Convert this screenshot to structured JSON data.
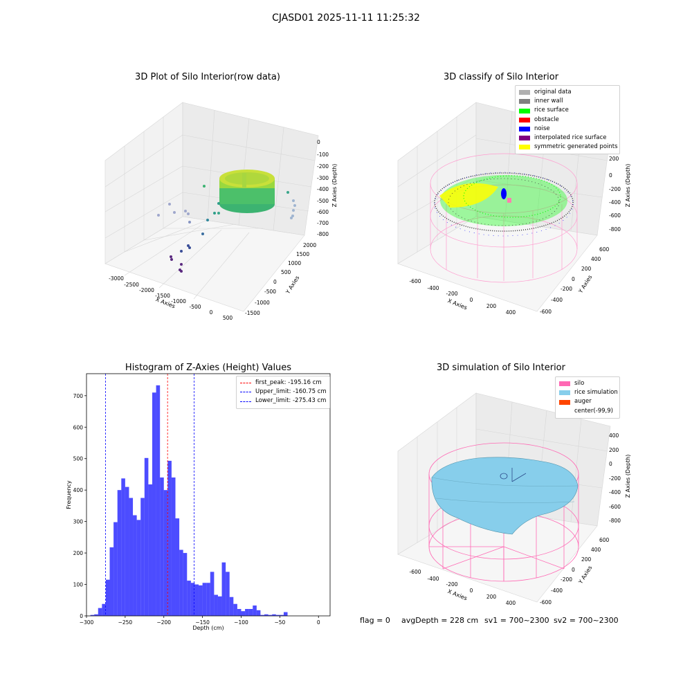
{
  "suptitle": "CJASD01 2025-11-11 11:25:32",
  "colors": {
    "original_data": "#b0b0b0",
    "inner_wall": "#808080",
    "rice_surface": "#00ff00",
    "obstacle": "#ff0000",
    "noise": "#0000ff",
    "interpolated": "#800080",
    "symmetric": "#ffff00",
    "silo": "#ff69b4",
    "rice_sim": "#87ceeb",
    "auger": "#ff4500",
    "hist": "#0000ff"
  },
  "plot1": {
    "title": "3D Plot of Silo Interior(row data)",
    "xlabel": "X Axies",
    "ylabel": "Y Axies",
    "zlabel": "Z Axies (Depth)",
    "xticks": [
      "-3000",
      "-2500",
      "-2000",
      "-1500",
      "-1000",
      "-500",
      "0",
      "500"
    ],
    "yticks": [
      "-1500",
      "-1000",
      "-500",
      "0",
      "500",
      "1000",
      "1500",
      "2000"
    ],
    "zticks": [
      "0",
      "-100",
      "-200",
      "-300",
      "-400",
      "-500",
      "-600",
      "-700",
      "-800"
    ]
  },
  "plot2": {
    "title": "3D classify of Silo Interior",
    "xlabel": "X Axies",
    "ylabel": "Y Axies",
    "zlabel": "Z Axies (Depth)",
    "xticks": [
      "-600",
      "-400",
      "-200",
      "0",
      "200",
      "400"
    ],
    "yticks": [
      "-600",
      "-400",
      "-200",
      "0",
      "200",
      "400",
      "600"
    ],
    "zticks": [
      "200",
      "0",
      "-200",
      "-400",
      "-600",
      "-800"
    ],
    "legend": [
      {
        "label": "original data",
        "color": "#b0b0b0"
      },
      {
        "label": "inner wall",
        "color": "#808080"
      },
      {
        "label": "rice surface",
        "color": "#00ff00"
      },
      {
        "label": "obstacle",
        "color": "#ff0000"
      },
      {
        "label": "noise",
        "color": "#0000ff"
      },
      {
        "label": "interpolated rice surface",
        "color": "#800080"
      },
      {
        "label": "symmetric generated points",
        "color": "#ffff00"
      }
    ]
  },
  "plot4": {
    "title": "3D simulation of Silo Interior",
    "xlabel": "X Axies",
    "ylabel": "Y Axies",
    "zlabel": "Z Axies (Depth)",
    "xticks": [
      "-600",
      "-400",
      "-200",
      "0",
      "200",
      "400"
    ],
    "yticks": [
      "-600",
      "-400",
      "-200",
      "0",
      "200",
      "400",
      "600"
    ],
    "zticks": [
      "400",
      "200",
      "0",
      "-200",
      "-400",
      "-600",
      "-800"
    ],
    "legend": [
      {
        "label": "silo",
        "color": "#ff69b4"
      },
      {
        "label": "rice simulation",
        "color": "#87ceeb"
      },
      {
        "label": "auger",
        "color": "#ff4500"
      },
      {
        "label": "center(-99,9)",
        "color": ""
      }
    ]
  },
  "footer": {
    "flag": "flag = 0",
    "avg": "avgDepth = 228 cm",
    "sv1": "sv1 = 700~2300",
    "sv2": "sv2 = 700~2300"
  },
  "chart_data": [
    {
      "type": "bar",
      "title": "Histogram of Z-Axies (Height) Values",
      "xlabel": "Depth (cm)",
      "ylabel": "Frequency",
      "xlim": [
        -300,
        15
      ],
      "ylim": [
        0,
        770
      ],
      "xticks": [
        -300,
        -250,
        -200,
        -150,
        -100,
        -50,
        0
      ],
      "yticks": [
        0,
        100,
        200,
        300,
        400,
        500,
        600,
        700
      ],
      "bin_start": -295,
      "bin_width": 5,
      "values": [
        3,
        5,
        25,
        38,
        115,
        218,
        298,
        400,
        437,
        410,
        375,
        320,
        305,
        375,
        502,
        418,
        710,
        733,
        440,
        400,
        493,
        440,
        310,
        210,
        200,
        112,
        105,
        100,
        97,
        105,
        105,
        140,
        67,
        62,
        170,
        140,
        60,
        38,
        22,
        15,
        22,
        22,
        33,
        18,
        3,
        5,
        3,
        5,
        3,
        3,
        12
      ],
      "vlines": [
        {
          "label": "first_peak: -195.16 cm",
          "x": -195.16,
          "color": "#ff0000"
        },
        {
          "label": "Upper_limit: -160.75 cm",
          "x": -160.75,
          "color": "#0000ff"
        },
        {
          "label": "Lower_limit: -275.43 cm",
          "x": -275.43,
          "color": "#0000ff"
        }
      ]
    }
  ]
}
